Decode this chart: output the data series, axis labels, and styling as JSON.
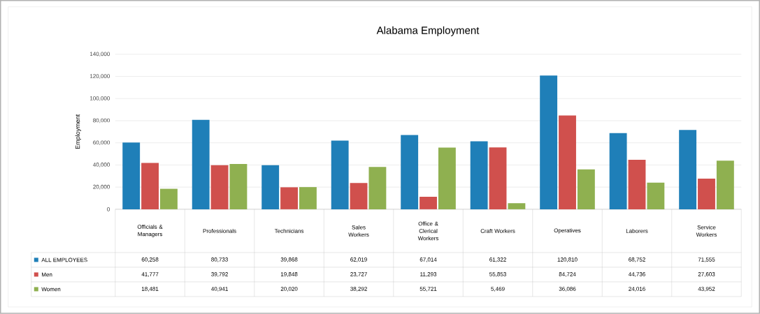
{
  "chart_data": {
    "type": "bar",
    "title": "Alabama Employment",
    "ylabel": "Employment",
    "categories": [
      "Officials & Managers",
      "Professionals",
      "Technicians",
      "Sales Workers",
      "Office & Clerical Workers",
      "Craft Workers",
      "Operatives",
      "Laborers",
      "Service Workers"
    ],
    "series": [
      {
        "name": "ALL EMPLOYEES",
        "color": "#1f7fb8",
        "values": [
          60258,
          80733,
          39868,
          62019,
          67014,
          61322,
          120810,
          68752,
          71555
        ],
        "value_labels": [
          "60,258",
          "80,733",
          "39,868",
          "62,019",
          "67,014",
          "61,322",
          "120,810",
          "68,752",
          "71,555"
        ]
      },
      {
        "name": "Men",
        "color": "#d0504d",
        "values": [
          41777,
          39792,
          19848,
          23727,
          11293,
          55853,
          84724,
          44736,
          27603
        ],
        "value_labels": [
          "41,777",
          "39,792",
          "19,848",
          "23,727",
          "11,293",
          "55,853",
          "84,724",
          "44,736",
          "27,603"
        ]
      },
      {
        "name": "Women",
        "color": "#8fb050",
        "values": [
          18481,
          40941,
          20020,
          38292,
          55721,
          5469,
          36086,
          24016,
          43952
        ],
        "value_labels": [
          "18,481",
          "40,941",
          "20,020",
          "38,292",
          "55,721",
          "5,469",
          "36,086",
          "24,016",
          "43,952"
        ]
      }
    ],
    "ylim": [
      0,
      140000
    ],
    "yticks": [
      {
        "value": 0,
        "label": "0"
      },
      {
        "value": 20000,
        "label": "20,000"
      },
      {
        "value": 40000,
        "label": "40,000"
      },
      {
        "value": 60000,
        "label": "60,000"
      },
      {
        "value": 80000,
        "label": "80,000"
      },
      {
        "value": 100000,
        "label": "100,000"
      },
      {
        "value": 120000,
        "label": "120,000"
      },
      {
        "value": 140000,
        "label": "140,000"
      }
    ],
    "grid": "y",
    "legend": "bottom"
  }
}
